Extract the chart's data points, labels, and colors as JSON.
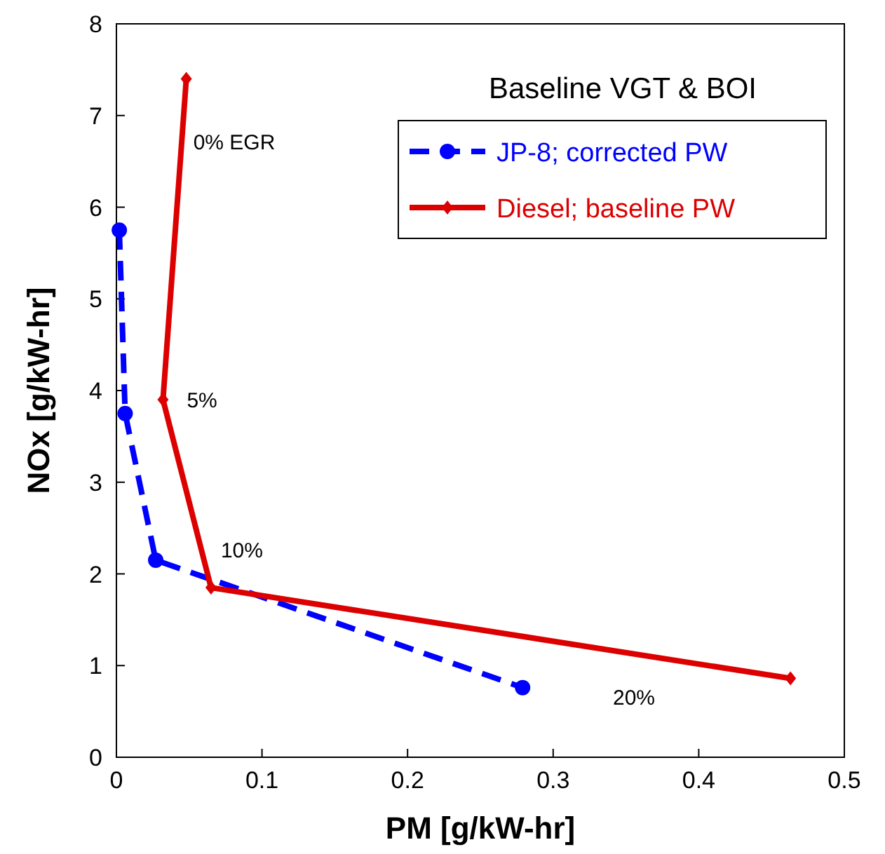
{
  "chart_data": {
    "type": "line",
    "xlabel": "PM [g/kW-hr]",
    "ylabel": "NOx [g/kW-hr]",
    "legend_title": "Baseline VGT & BOI",
    "xlim": [
      0,
      0.5
    ],
    "xticks": [
      {
        "value": 0,
        "label": "0"
      },
      {
        "value": 0.1,
        "label": "0.1"
      },
      {
        "value": 0.2,
        "label": "0.2"
      },
      {
        "value": 0.3,
        "label": "0.3"
      },
      {
        "value": 0.4,
        "label": "0.4"
      },
      {
        "value": 0.5,
        "label": "0.5"
      }
    ],
    "ylim": [
      0,
      8
    ],
    "yticks": [
      0,
      1,
      2,
      3,
      4,
      5,
      6,
      7,
      8
    ],
    "grid": false,
    "legend": "top right",
    "series": [
      {
        "name": "JP-8; corrected PW",
        "color": "#0000ff",
        "marker": "circle",
        "line_style": "dashed",
        "x": [
          0.002,
          0.006,
          0.027,
          0.279
        ],
        "values": [
          5.75,
          3.75,
          2.15,
          0.76
        ]
      },
      {
        "name": "Diesel; baseline PW",
        "color": "#dd0000",
        "marker": "diamond",
        "line_style": "solid",
        "x": [
          0.048,
          0.032,
          0.065,
          0.463
        ],
        "values": [
          7.4,
          3.9,
          1.85,
          0.86
        ]
      }
    ],
    "annotations": [
      {
        "text": "0% EGR",
        "x": 0.048,
        "y": 7.4
      },
      {
        "text": "5%",
        "x": 0.032,
        "y": 3.9
      },
      {
        "text": "10%",
        "x": 0.065,
        "y": 1.85
      },
      "20%"
    ]
  }
}
